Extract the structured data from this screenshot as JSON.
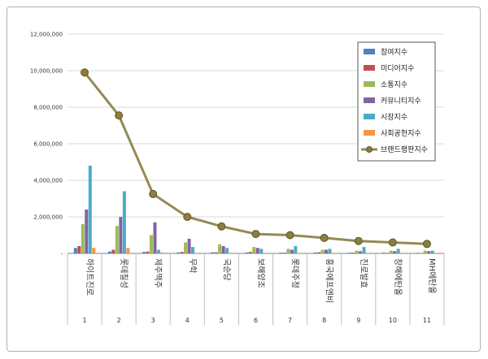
{
  "chart_data": {
    "type": "bar",
    "categories": [
      "하이트진로",
      "롯데칠성",
      "제주맥주",
      "무학",
      "국순당",
      "보해양조",
      "롯데주정",
      "흥국에프엔비",
      "진로발효",
      "창해에탄올",
      "MH에탄올"
    ],
    "ranks": [
      "1",
      "2",
      "3",
      "4",
      "5",
      "6",
      "7",
      "8",
      "9",
      "10",
      "11"
    ],
    "ylim": [
      0,
      12000000
    ],
    "yticks": [
      0,
      2000000,
      4000000,
      6000000,
      8000000,
      10000000,
      12000000
    ],
    "ytick_labels": [
      "-",
      "2,000,000",
      "4,000,000",
      "6,000,000",
      "8,000,000",
      "10,000,000",
      "12,000,000"
    ],
    "grid": true,
    "legend_position": "top-right",
    "series": [
      {
        "name": "참여지수",
        "color": "#4f81bd",
        "values": [
          300000,
          100000,
          80000,
          50000,
          60000,
          50000,
          40000,
          50000,
          40000,
          40000,
          30000
        ]
      },
      {
        "name": "미디어지수",
        "color": "#c0504d",
        "values": [
          400000,
          200000,
          100000,
          80000,
          60000,
          80000,
          40000,
          60000,
          40000,
          30000,
          20000
        ]
      },
      {
        "name": "소통지수",
        "color": "#9bbb59",
        "values": [
          1600000,
          1500000,
          1000000,
          600000,
          500000,
          350000,
          250000,
          200000,
          150000,
          150000,
          150000
        ]
      },
      {
        "name": "커뮤니티지수",
        "color": "#8064a2",
        "values": [
          2400000,
          2000000,
          1700000,
          800000,
          400000,
          300000,
          200000,
          200000,
          120000,
          120000,
          120000
        ]
      },
      {
        "name": "시장지수",
        "color": "#4bacc6",
        "values": [
          4800000,
          3400000,
          200000,
          350000,
          300000,
          250000,
          400000,
          250000,
          350000,
          250000,
          150000
        ]
      },
      {
        "name": "사회공헌지수",
        "color": "#f79646",
        "values": [
          300000,
          300000,
          50000,
          30000,
          30000,
          30000,
          30000,
          30000,
          30000,
          30000,
          30000
        ]
      }
    ],
    "line_series": {
      "name": "브랜드평판지수",
      "color": "#948a54",
      "values": [
        9900000,
        7550000,
        3250000,
        2000000,
        1480000,
        1060000,
        1000000,
        850000,
        680000,
        600000,
        520000
      ]
    }
  }
}
